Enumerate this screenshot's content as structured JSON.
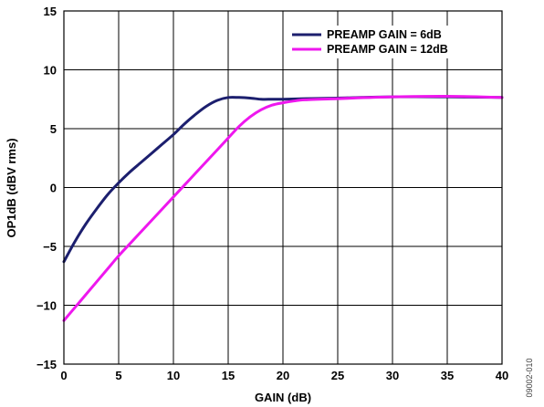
{
  "chart_data": {
    "type": "line",
    "xlabel": "GAIN (dB)",
    "ylabel": "OP1dB (dBV rms)",
    "xlim": [
      0,
      40
    ],
    "ylim": [
      -15,
      15
    ],
    "x_ticks": [
      "0",
      "5",
      "10",
      "15",
      "20",
      "25",
      "30",
      "35",
      "40"
    ],
    "y_ticks": [
      "−15",
      "−10",
      "−5",
      "0",
      "5",
      "10",
      "15"
    ],
    "grid": true,
    "legend_position": "top-right",
    "figure_code": "09002-010",
    "series": [
      {
        "name": "PREAMP GAIN = 6dB",
        "color": "#1c1f6e",
        "x": [
          0,
          1,
          2,
          3,
          4,
          5,
          6,
          7,
          8,
          9,
          10,
          11,
          12,
          13,
          14,
          15,
          16,
          17,
          18,
          19,
          20,
          22,
          25,
          30,
          35,
          40
        ],
        "y": [
          -6.3,
          -4.6,
          -3.1,
          -1.8,
          -0.6,
          0.4,
          1.3,
          2.1,
          2.9,
          3.7,
          4.5,
          5.4,
          6.2,
          6.9,
          7.4,
          7.65,
          7.65,
          7.6,
          7.5,
          7.5,
          7.5,
          7.55,
          7.6,
          7.7,
          7.7,
          7.65
        ]
      },
      {
        "name": "PREAMP GAIN = 12dB",
        "color": "#ee17ee",
        "x": [
          0,
          1,
          2,
          3,
          4,
          5,
          6,
          7,
          8,
          9,
          10,
          11,
          12,
          13,
          14,
          15,
          16,
          17,
          18,
          19,
          20,
          21,
          22,
          25,
          30,
          35,
          40
        ],
        "y": [
          -11.3,
          -10.2,
          -9.1,
          -8.0,
          -6.9,
          -5.8,
          -4.8,
          -3.8,
          -2.8,
          -1.8,
          -0.8,
          0.2,
          1.2,
          2.2,
          3.2,
          4.2,
          5.2,
          6.0,
          6.6,
          7.0,
          7.2,
          7.35,
          7.45,
          7.55,
          7.7,
          7.75,
          7.65
        ]
      }
    ]
  }
}
